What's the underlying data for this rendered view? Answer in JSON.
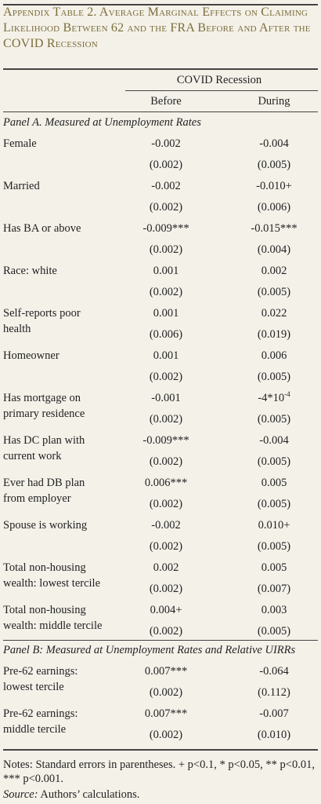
{
  "title": "Appendix Table 2. Average Marginal Effects on Claiming Likelihood Between 62 and the FRA Before and After the COVID Recession",
  "header": {
    "group": "COVID Recession",
    "col1": "Before",
    "col2": "During"
  },
  "panel_a": {
    "title": "Panel A. Measured at Unemployment Rates",
    "rows": [
      {
        "label1": "Female",
        "label2": "",
        "before": "-0.002",
        "during": "-0.004",
        "before_se": "(0.002)",
        "during_se": "(0.005)"
      },
      {
        "label1": "Married",
        "label2": "",
        "before": "-0.002",
        "during": "-0.010+",
        "before_se": "(0.002)",
        "during_se": "(0.006)"
      },
      {
        "label1": "Has BA or above",
        "label2": "",
        "before": "-0.009***",
        "during": "-0.015***",
        "before_se": "(0.002)",
        "during_se": "(0.004)"
      },
      {
        "label1": "Race: white",
        "label2": "",
        "before": "0.001",
        "during": "0.002",
        "before_se": "(0.002)",
        "during_se": "(0.005)"
      },
      {
        "label1": "Self-reports poor",
        "label2": "health",
        "before": "0.001",
        "during": "0.022",
        "before_se": "(0.006)",
        "during_se": "(0.019)"
      },
      {
        "label1": "Homeowner",
        "label2": "",
        "before": "0.001",
        "during": "0.006",
        "before_se": "(0.002)",
        "during_se": "(0.005)"
      },
      {
        "label1": "Has mortgage on",
        "label2": "primary residence",
        "before": "-0.001",
        "during": "-4*10",
        "during_exp": "-4",
        "before_se": "(0.002)",
        "during_se": "(0.005)"
      },
      {
        "label1": "Has DC plan with",
        "label2": "current work",
        "before": "-0.009***",
        "during": "-0.004",
        "before_se": "(0.002)",
        "during_se": "(0.005)"
      },
      {
        "label1": "Ever had DB plan",
        "label2": "from employer",
        "before": "0.006***",
        "during": "0.005",
        "before_se": "(0.002)",
        "during_se": "(0.005)"
      },
      {
        "label1": "Spouse is working",
        "label2": "",
        "before": "-0.002",
        "during": "0.010+",
        "before_se": "(0.002)",
        "during_se": "(0.005)"
      },
      {
        "label1": "Total non-housing",
        "label2": "wealth: lowest tercile",
        "before": "0.002",
        "during": "0.005",
        "before_se": "(0.002)",
        "during_se": "(0.007)"
      },
      {
        "label1": "Total non-housing",
        "label2": "wealth: middle tercile",
        "before": "0.004+",
        "during": "0.003",
        "before_se": "(0.002)",
        "during_se": "(0.005)"
      }
    ]
  },
  "panel_b": {
    "title": "Panel B: Measured at Unemployment Rates and Relative UIRRs",
    "rows": [
      {
        "label1": "Pre-62 earnings:",
        "label2": "lowest tercile",
        "before": "0.007***",
        "during": "-0.064",
        "before_se": "(0.002)",
        "during_se": "(0.112)"
      },
      {
        "label1": "Pre-62 earnings:",
        "label2": "middle tercile",
        "before": "0.007***",
        "during": "-0.007",
        "before_se": "(0.002)",
        "during_se": "(0.010)"
      }
    ]
  },
  "notes": {
    "text": "Notes: Standard errors in parentheses.  + p<0.1, * p<0.05, ** p<0.01, *** p<0.001.",
    "source_label": "Source:",
    "source_text": " Authors’ calculations."
  }
}
